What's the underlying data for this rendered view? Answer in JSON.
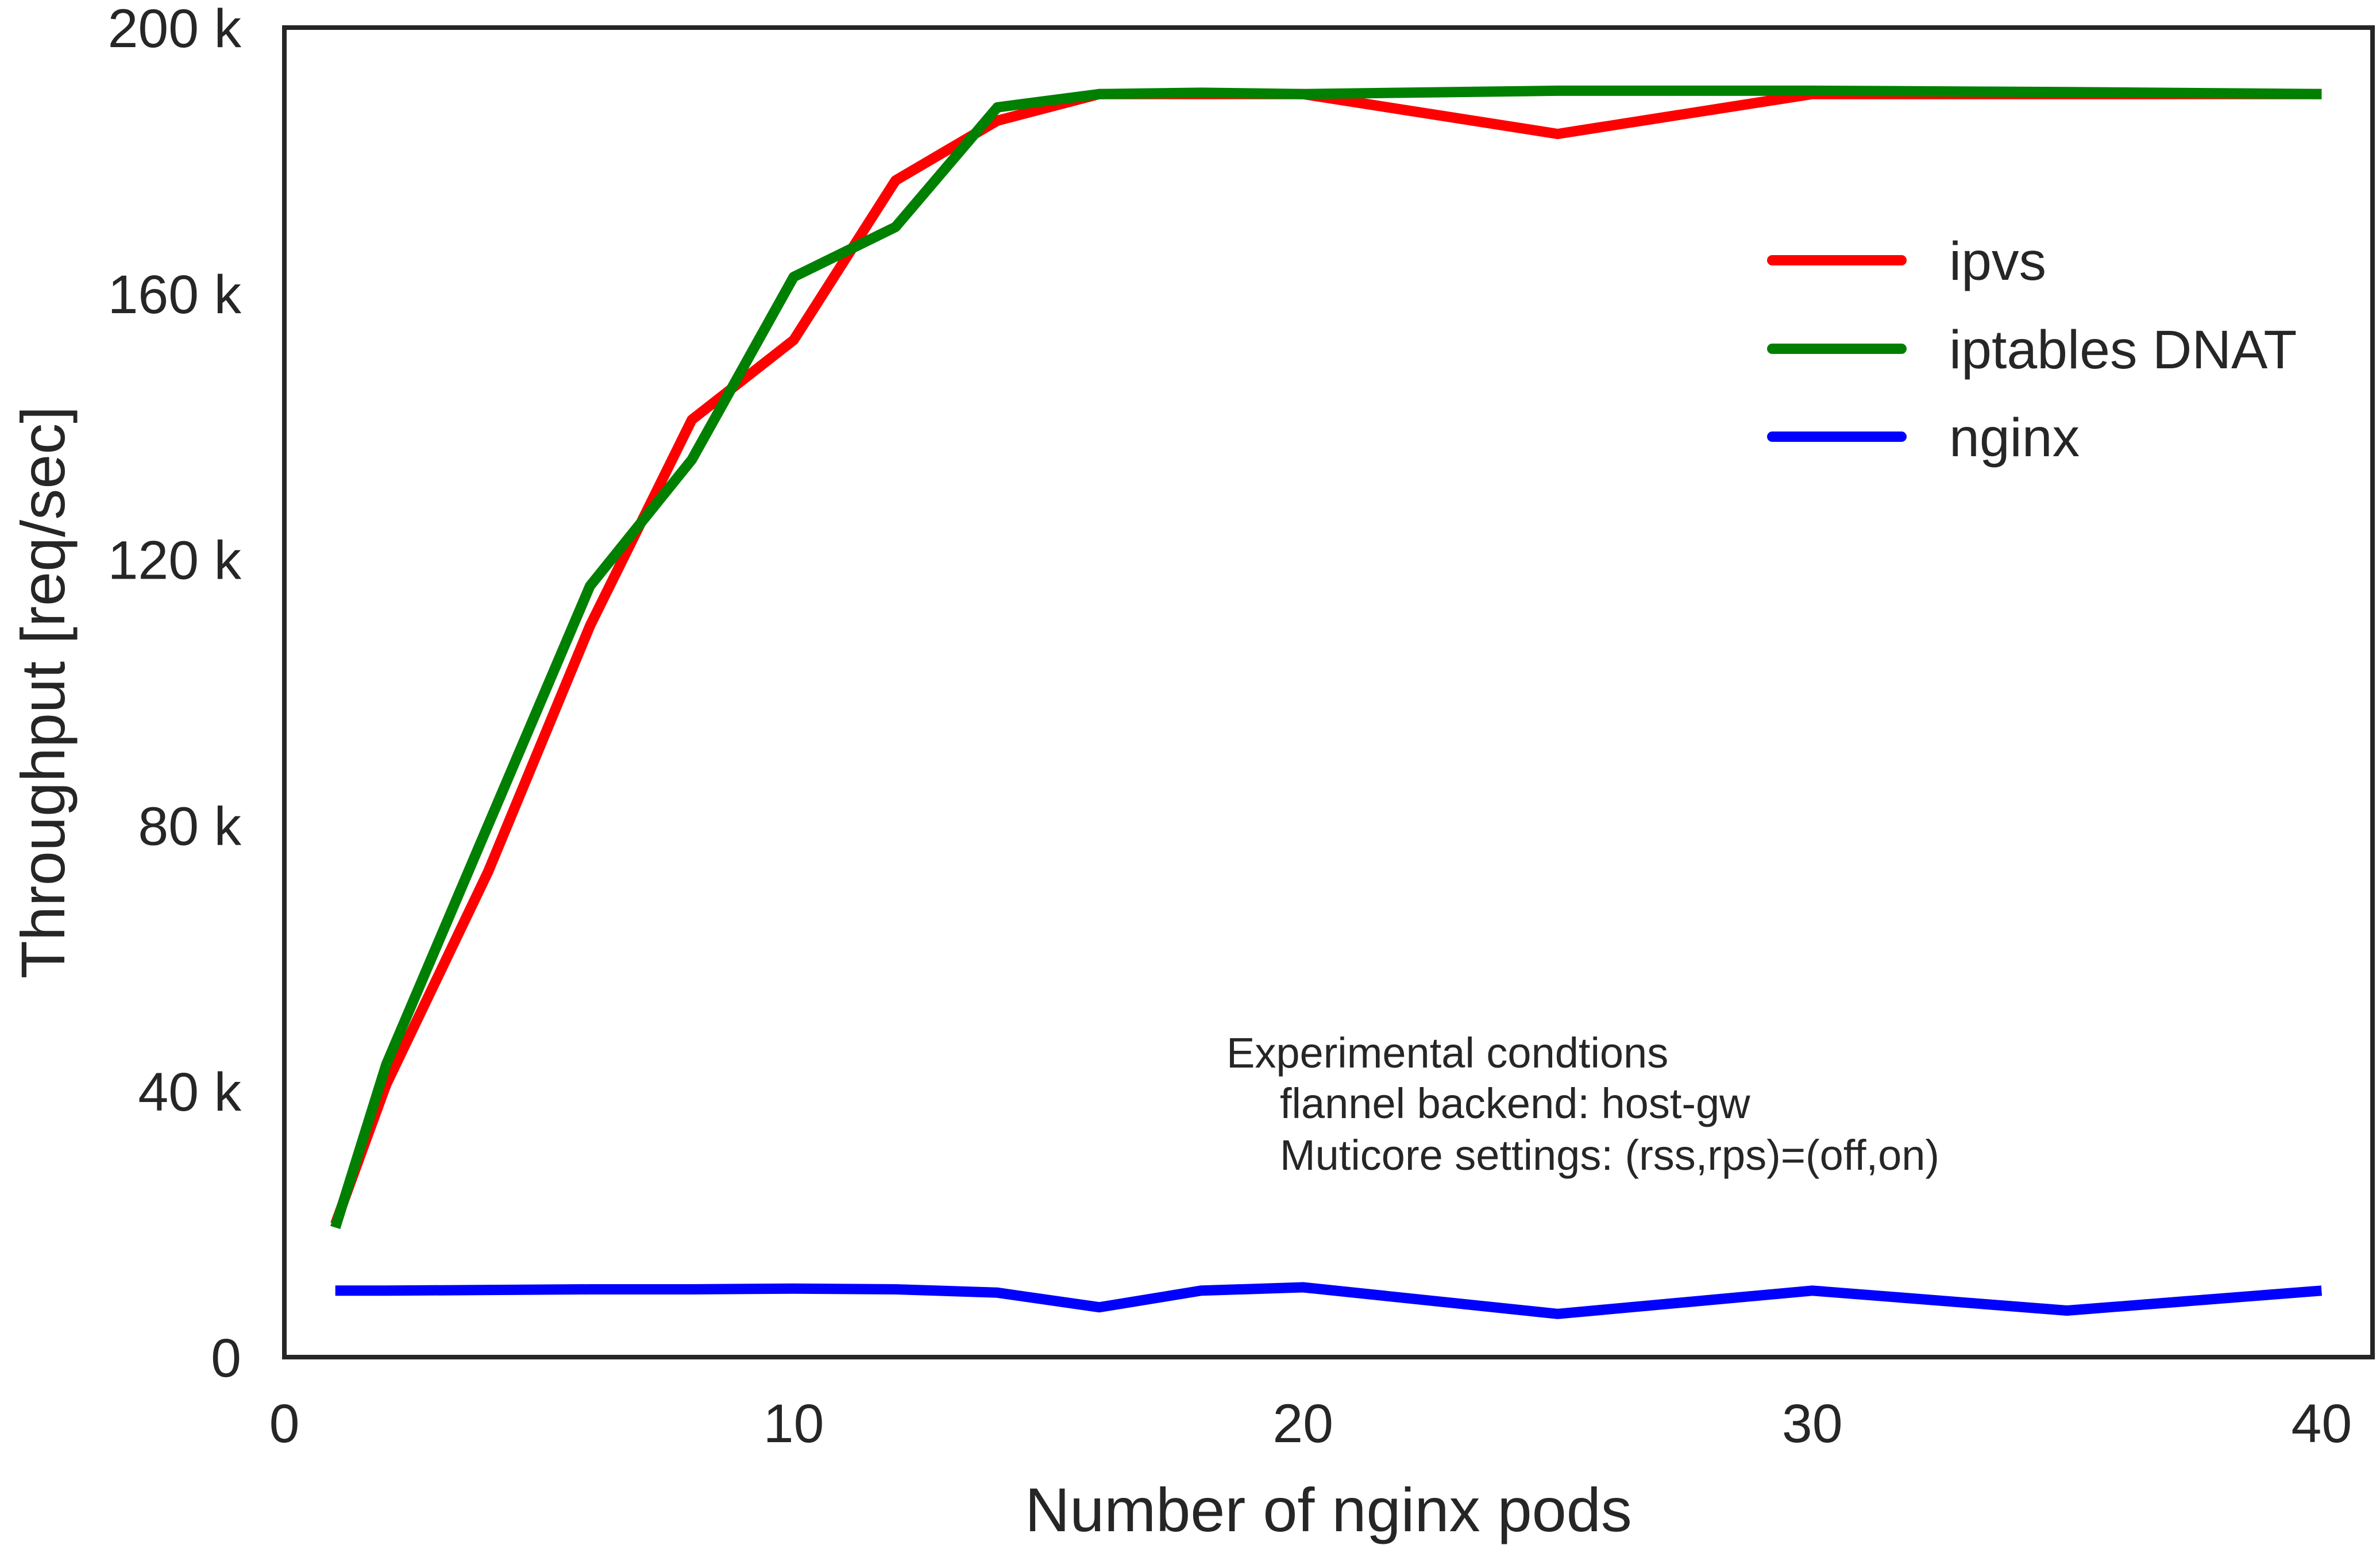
{
  "chart_data": {
    "type": "line",
    "title": "",
    "xlabel": "Number of nginx pods",
    "ylabel": "Throughput [req/sec]",
    "xlim": [
      0,
      41
    ],
    "ylim": [
      0,
      200000
    ],
    "x_ticks": [
      0,
      10,
      20,
      30,
      40
    ],
    "x_tick_labels": [
      "0",
      "10",
      "20",
      "30",
      "40"
    ],
    "y_ticks": [
      0,
      40000,
      80000,
      120000,
      160000,
      200000
    ],
    "y_tick_labels": [
      "0",
      "40 k",
      "80 k",
      "120 k",
      "160 k",
      "200 k"
    ],
    "grid": false,
    "legend": {
      "placement": "upper-right",
      "entries": [
        "ipvs",
        "iptables DNAT",
        "nginx"
      ]
    },
    "annotation": {
      "placement": "lower-right",
      "lines": [
        "Experimental condtions",
        "flannel backend: host-gw",
        "Muticore settings: (rss,rps)=(off,on)"
      ]
    },
    "series": [
      {
        "name": "ipvs",
        "color": "#ff0000",
        "x": [
          1,
          2,
          4,
          6,
          8,
          10,
          12,
          14,
          16,
          18,
          20,
          25,
          30,
          35,
          40
        ],
        "y": [
          20000,
          41000,
          73000,
          110000,
          141000,
          153000,
          177000,
          186000,
          190000,
          190000,
          190000,
          184000,
          190000,
          190000,
          190000
        ]
      },
      {
        "name": "iptables DNAT",
        "color": "#008000",
        "x": [
          1,
          2,
          4,
          6,
          8,
          10,
          12,
          14,
          16,
          18,
          20,
          25,
          30,
          35,
          40
        ],
        "y": [
          19500,
          44000,
          80000,
          116000,
          135000,
          162500,
          170000,
          188000,
          190000,
          190200,
          190000,
          190500,
          190500,
          190300,
          190000
        ]
      },
      {
        "name": "nginx",
        "color": "#0000ff",
        "x": [
          1,
          2,
          4,
          6,
          8,
          10,
          12,
          14,
          16,
          18,
          20,
          25,
          30,
          35,
          40
        ],
        "y": [
          10000,
          10000,
          10100,
          10200,
          10200,
          10300,
          10200,
          9700,
          7500,
          10000,
          10500,
          6500,
          10000,
          7000,
          10000
        ]
      }
    ]
  }
}
